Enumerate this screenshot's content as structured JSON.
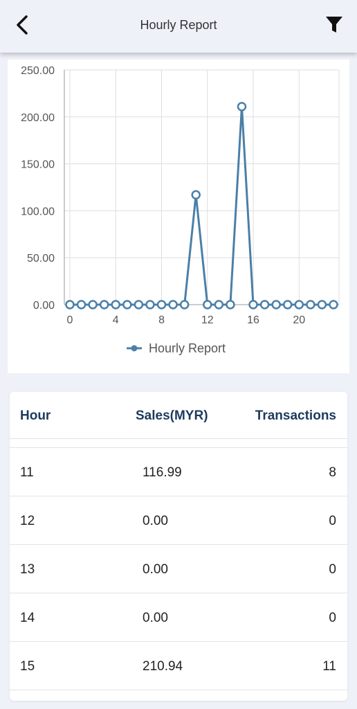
{
  "header": {
    "title": "Hourly Report",
    "back_icon": "back-arrow-icon",
    "filter_icon": "filter-icon"
  },
  "chart_data": {
    "type": "line",
    "x": [
      0,
      1,
      2,
      3,
      4,
      5,
      6,
      7,
      8,
      9,
      10,
      11,
      12,
      13,
      14,
      15,
      16,
      17,
      18,
      19,
      20,
      21,
      22,
      23
    ],
    "series": [
      {
        "name": "Hourly Report",
        "values": [
          0,
          0,
          0,
          0,
          0,
          0,
          0,
          0,
          0,
          0,
          0,
          116.99,
          0,
          0,
          0,
          210.94,
          0,
          0,
          0,
          0,
          0,
          0,
          0,
          0
        ],
        "color": "#4a7fa8"
      }
    ],
    "xticks": [
      "0",
      "4",
      "8",
      "12",
      "16",
      "20"
    ],
    "yticks": [
      "0.00",
      "50.00",
      "100.00",
      "150.00",
      "200.00",
      "250.00"
    ],
    "xlim": [
      0,
      23
    ],
    "ylim": [
      0,
      250
    ],
    "grid": true,
    "legend_position": "bottom",
    "title": "",
    "xlabel": "",
    "ylabel": ""
  },
  "table": {
    "headers": {
      "hour": "Hour",
      "sales": "Sales(MYR)",
      "transactions": "Transactions"
    },
    "rows": [
      {
        "hour": "11",
        "sales": "116.99",
        "transactions": "8"
      },
      {
        "hour": "12",
        "sales": "0.00",
        "transactions": "0"
      },
      {
        "hour": "13",
        "sales": "0.00",
        "transactions": "0"
      },
      {
        "hour": "14",
        "sales": "0.00",
        "transactions": "0"
      },
      {
        "hour": "15",
        "sales": "210.94",
        "transactions": "11"
      }
    ]
  }
}
